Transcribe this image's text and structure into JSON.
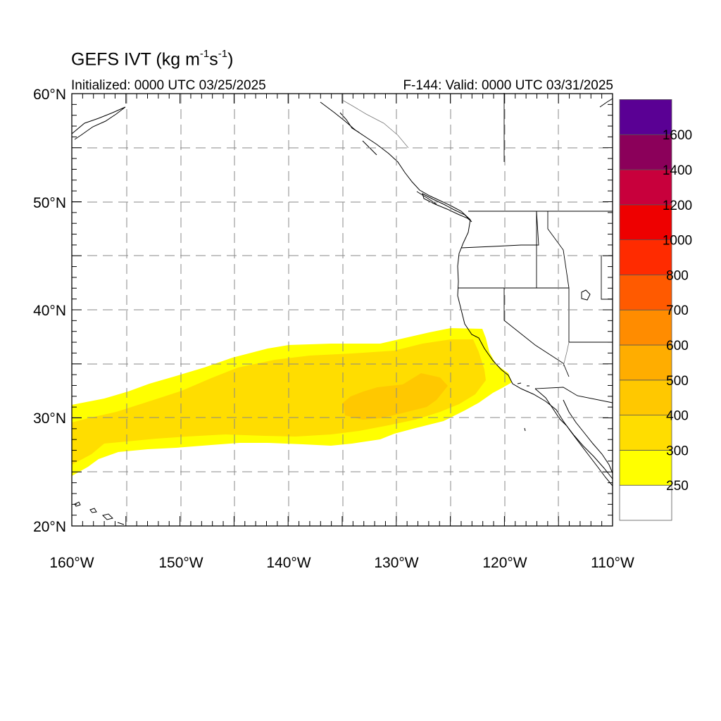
{
  "map": {
    "title": "GEFS IVT (kg m",
    "title_exp1": "-1",
    "title_mid": "s",
    "title_exp2": "-1",
    "title_end": ")",
    "init_text": "Initialized: 0000 UTC 03/25/2025",
    "valid_text": "F-144: Valid: 0000 UTC 03/31/2025",
    "lat_labels": [
      "60°N",
      "50°N",
      "40°N",
      "30°N",
      "20°N"
    ],
    "lon_labels": [
      "160°W",
      "150°W",
      "140°W",
      "130°W",
      "120°W",
      "110°W"
    ],
    "extent": {
      "lon_min": -160,
      "lon_max": -110,
      "lat_min": 20,
      "lat_max": 60
    },
    "grid_style": "dashed every 5 degrees"
  },
  "colorbar": {
    "labels": [
      "250",
      "300",
      "400",
      "500",
      "600",
      "700",
      "800",
      "1000",
      "1200",
      "1400",
      "1600"
    ],
    "colors": [
      "#ffffff",
      "#ffff00",
      "#ffdd00",
      "#ffc800",
      "#ffad00",
      "#ff8c00",
      "#ff5a00",
      "#ff2b00",
      "#ee0000",
      "#c8003c",
      "#8b005a",
      "#5a0094"
    ]
  },
  "field": {
    "outer_color": "#ffff00",
    "mid_color": "#ffdd00",
    "core_color": "#ffc800"
  }
}
